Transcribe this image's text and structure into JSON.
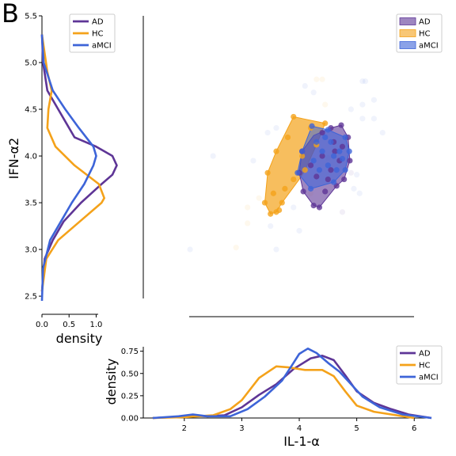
{
  "panel_letter": "B",
  "colors": {
    "AD": "#5e3596",
    "HC": "#f4a21a",
    "aMCI": "#3d64d8"
  },
  "chart_data": [
    {
      "id": "left-kde",
      "type": "line",
      "orientation": "vertical",
      "xlabel": "density",
      "ylabel": "IFN-α2",
      "xlim": [
        0,
        1.3
      ],
      "ylim": [
        2.45,
        5.5
      ],
      "x_ticks": [
        "0.0",
        "0.5",
        "1.0"
      ],
      "x_tick_values": [
        0,
        0.5,
        1.0
      ],
      "y_ticks": [
        "2.5",
        "3.0",
        "3.5",
        "4.0",
        "4.5",
        "5.0",
        "5.5"
      ],
      "y_tick_values": [
        2.5,
        3.0,
        3.5,
        4.0,
        4.5,
        5.0,
        5.5
      ],
      "legend": {
        "position": "top-right",
        "entries": [
          "AD",
          "HC",
          "aMCI"
        ]
      },
      "series": [
        {
          "name": "AD",
          "y": [
            2.55,
            2.9,
            3.1,
            3.3,
            3.5,
            3.7,
            3.8,
            3.9,
            4.0,
            4.1,
            4.2,
            4.35,
            4.5,
            4.7,
            5.0,
            5.3
          ],
          "density": [
            0.0,
            0.05,
            0.2,
            0.4,
            0.72,
            1.1,
            1.3,
            1.38,
            1.3,
            1.0,
            0.6,
            0.45,
            0.3,
            0.1,
            0.02,
            0.0
          ]
        },
        {
          "name": "HC",
          "y": [
            2.55,
            2.9,
            3.1,
            3.3,
            3.5,
            3.55,
            3.7,
            3.9,
            4.1,
            4.3,
            4.5,
            4.7,
            4.9,
            5.1,
            5.3
          ],
          "density": [
            0.0,
            0.08,
            0.3,
            0.7,
            1.1,
            1.15,
            1.05,
            0.6,
            0.25,
            0.1,
            0.12,
            0.18,
            0.1,
            0.05,
            0.0
          ]
        },
        {
          "name": "aMCI",
          "y": [
            2.45,
            2.8,
            3.1,
            3.3,
            3.5,
            3.7,
            3.9,
            4.0,
            4.1,
            4.3,
            4.5,
            4.7,
            5.0,
            5.3
          ],
          "density": [
            0.0,
            0.02,
            0.15,
            0.35,
            0.55,
            0.78,
            0.95,
            1.0,
            0.95,
            0.68,
            0.43,
            0.2,
            0.03,
            0.0
          ]
        }
      ]
    },
    {
      "id": "scatter-main",
      "type": "scatter",
      "xlim": [
        1.3,
        6.3
      ],
      "ylim": [
        2.45,
        5.5
      ],
      "legend": {
        "position": "top-right",
        "entries": [
          "AD",
          "HC",
          "aMCI"
        ]
      },
      "hulls": [
        {
          "name": "AD",
          "points": [
            [
              4.73,
              4.33
            ],
            [
              4.85,
              4.2
            ],
            [
              4.88,
              3.95
            ],
            [
              4.78,
              3.75
            ],
            [
              4.65,
              3.68
            ],
            [
              4.35,
              3.45
            ],
            [
              4.25,
              3.47
            ],
            [
              4.07,
              3.62
            ],
            [
              4.0,
              3.82
            ],
            [
              4.05,
              4.05
            ],
            [
              4.25,
              4.22
            ],
            [
              4.55,
              4.3
            ]
          ]
        },
        {
          "name": "HC",
          "points": [
            [
              3.9,
              4.42
            ],
            [
              4.45,
              4.35
            ],
            [
              4.3,
              4.12
            ],
            [
              4.1,
              3.85
            ],
            [
              4.0,
              3.75
            ],
            [
              3.7,
              3.5
            ],
            [
              3.6,
              3.4
            ],
            [
              3.5,
              3.38
            ],
            [
              3.4,
              3.5
            ],
            [
              3.45,
              3.82
            ],
            [
              3.6,
              4.05
            ]
          ]
        },
        {
          "name": "aMCI",
          "points": [
            [
              4.22,
              4.32
            ],
            [
              4.5,
              4.28
            ],
            [
              4.8,
              4.2
            ],
            [
              4.87,
              4.05
            ],
            [
              4.8,
              3.85
            ],
            [
              4.6,
              3.72
            ],
            [
              4.2,
              3.65
            ],
            [
              3.97,
              3.82
            ],
            [
              4.05,
              4.05
            ]
          ]
        }
      ],
      "series": [
        {
          "name": "AD",
          "points": [
            [
              4.73,
              4.33
            ],
            [
              4.85,
              4.2
            ],
            [
              4.88,
              3.95
            ],
            [
              4.78,
              3.75
            ],
            [
              4.65,
              3.68
            ],
            [
              4.35,
              3.45
            ],
            [
              4.25,
              3.47
            ],
            [
              4.07,
              3.62
            ],
            [
              4.0,
              3.82
            ],
            [
              4.05,
              4.05
            ],
            [
              4.55,
              4.3
            ],
            [
              4.5,
              3.75
            ],
            [
              4.55,
              3.85
            ],
            [
              4.6,
              4.15
            ],
            [
              4.4,
              4.0
            ],
            [
              4.3,
              3.78
            ],
            [
              4.45,
              3.62
            ],
            [
              4.7,
              3.95
            ],
            [
              4.2,
              3.9
            ],
            [
              4.62,
              4.05
            ],
            [
              4.75,
              4.1
            ],
            [
              4.4,
              4.25
            ]
          ],
          "faint": [
            [
              4.5,
              3.98
            ],
            [
              4.75,
              3.4
            ],
            [
              4.2,
              3.95
            ],
            [
              4.9,
              3.82
            ]
          ]
        },
        {
          "name": "HC",
          "points": [
            [
              3.9,
              4.42
            ],
            [
              4.45,
              4.35
            ],
            [
              4.3,
              4.12
            ],
            [
              4.1,
              3.85
            ],
            [
              3.7,
              3.5
            ],
            [
              3.6,
              3.4
            ],
            [
              3.5,
              3.38
            ],
            [
              3.4,
              3.5
            ],
            [
              3.45,
              3.82
            ],
            [
              3.6,
              4.05
            ],
            [
              3.75,
              3.65
            ],
            [
              3.9,
              3.75
            ],
            [
              4.05,
              4.0
            ],
            [
              3.55,
              3.6
            ],
            [
              3.8,
              4.2
            ],
            [
              4.2,
              4.3
            ],
            [
              3.65,
              3.42
            ]
          ],
          "faint": [
            [
              4.3,
              4.82
            ],
            [
              4.4,
              4.82
            ],
            [
              3.3,
              3.55
            ],
            [
              3.1,
              3.45
            ],
            [
              3.1,
              3.28
            ],
            [
              2.9,
              3.02
            ],
            [
              4.2,
              3.6
            ],
            [
              4.45,
              4.55
            ]
          ]
        },
        {
          "name": "aMCI",
          "points": [
            [
              4.22,
              4.32
            ],
            [
              4.5,
              4.28
            ],
            [
              4.8,
              4.2
            ],
            [
              4.87,
              4.05
            ],
            [
              4.8,
              3.85
            ],
            [
              4.6,
              3.72
            ],
            [
              4.2,
              3.65
            ],
            [
              3.97,
              3.82
            ],
            [
              4.05,
              4.05
            ],
            [
              4.3,
              4.15
            ],
            [
              4.4,
              4.05
            ],
            [
              4.6,
              4.0
            ],
            [
              4.5,
              3.9
            ],
            [
              4.7,
              4.05
            ],
            [
              4.35,
              3.85
            ],
            [
              4.55,
              4.15
            ],
            [
              4.25,
              3.95
            ],
            [
              4.65,
              3.85
            ],
            [
              4.75,
              3.97
            ],
            [
              4.45,
              4.2
            ]
          ],
          "faint": [
            [
              5.1,
              4.8
            ],
            [
              5.1,
              4.55
            ],
            [
              5.3,
              4.6
            ],
            [
              5.1,
              4.4
            ],
            [
              5.45,
              4.25
            ],
            [
              5.3,
              4.4
            ],
            [
              5.0,
              3.8
            ],
            [
              5.05,
              3.6
            ],
            [
              3.45,
              4.25
            ],
            [
              3.6,
              4.3
            ],
            [
              4.1,
              4.75
            ],
            [
              4.25,
              4.68
            ],
            [
              4.9,
              4.5
            ],
            [
              2.1,
              3.0
            ],
            [
              3.2,
              3.95
            ],
            [
              3.5,
              3.25
            ],
            [
              3.9,
              3.45
            ],
            [
              4.0,
              3.2
            ],
            [
              3.6,
              3.0
            ],
            [
              2.5,
              4.0
            ],
            [
              5.15,
              4.8
            ],
            [
              4.95,
              3.65
            ]
          ]
        }
      ]
    },
    {
      "id": "bottom-kde",
      "type": "line",
      "xlabel": "IL-1-α",
      "ylabel": "density",
      "xlim": [
        1.3,
        6.3
      ],
      "ylim": [
        0,
        0.8
      ],
      "x_ticks": [
        "2",
        "3",
        "4",
        "5",
        "6"
      ],
      "x_tick_values": [
        2,
        3,
        4,
        5,
        6
      ],
      "y_ticks": [
        "0.00",
        "0.25",
        "0.50",
        "0.75"
      ],
      "y_tick_values": [
        0,
        0.25,
        0.5,
        0.75
      ],
      "legend": {
        "position": "top-right",
        "entries": [
          "AD",
          "HC",
          "aMCI"
        ]
      },
      "series": [
        {
          "name": "AD",
          "x": [
            1.45,
            1.8,
            2.1,
            2.4,
            2.7,
            3.0,
            3.3,
            3.6,
            3.9,
            4.2,
            4.4,
            4.6,
            4.8,
            5.0,
            5.3,
            5.6,
            5.9,
            6.3
          ],
          "density": [
            0.0,
            0.01,
            0.03,
            0.02,
            0.03,
            0.12,
            0.26,
            0.38,
            0.55,
            0.67,
            0.7,
            0.65,
            0.48,
            0.3,
            0.17,
            0.1,
            0.04,
            0.0
          ]
        },
        {
          "name": "HC",
          "x": [
            1.45,
            2.0,
            2.5,
            2.8,
            3.0,
            3.3,
            3.6,
            3.8,
            4.1,
            4.4,
            4.6,
            4.8,
            5.0,
            5.3,
            5.6,
            6.0
          ],
          "density": [
            0.0,
            0.01,
            0.03,
            0.1,
            0.2,
            0.45,
            0.58,
            0.57,
            0.54,
            0.54,
            0.47,
            0.3,
            0.14,
            0.07,
            0.04,
            0.0
          ]
        },
        {
          "name": "aMCI",
          "x": [
            1.45,
            1.9,
            2.15,
            2.4,
            2.8,
            3.1,
            3.4,
            3.7,
            3.9,
            4.0,
            4.15,
            4.3,
            4.5,
            4.7,
            4.9,
            5.1,
            5.4,
            5.8,
            6.3
          ],
          "density": [
            0.0,
            0.02,
            0.04,
            0.02,
            0.02,
            0.1,
            0.24,
            0.42,
            0.62,
            0.72,
            0.78,
            0.73,
            0.62,
            0.52,
            0.38,
            0.24,
            0.12,
            0.04,
            0.0
          ]
        }
      ]
    }
  ]
}
